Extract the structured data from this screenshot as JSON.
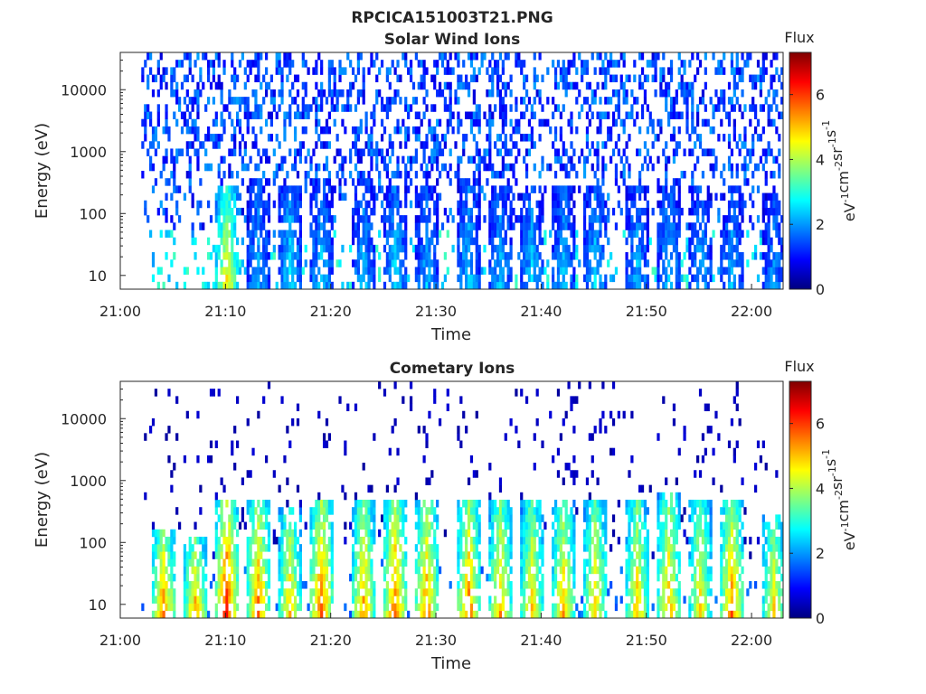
{
  "figure": {
    "title": "RPCICA151003T21.PNG"
  },
  "colorbar": {
    "label_top": "Flux",
    "unit_label_parts": [
      "eV",
      "-1",
      "cm",
      "-2",
      "sr",
      "-1",
      "s",
      "-1"
    ],
    "ticks": [
      0,
      2,
      4,
      6
    ],
    "range": [
      0,
      7.3
    ]
  },
  "chart_data": [
    {
      "type": "heatmap",
      "title": "Solar Wind Ions",
      "xlabel": "Time",
      "ylabel": "Energy (eV)",
      "yscale": "log",
      "ylim": [
        6,
        40000
      ],
      "xlim": [
        "21:00",
        "22:03"
      ],
      "xticks": [
        "21:00",
        "21:10",
        "21:20",
        "21:30",
        "21:40",
        "21:50",
        "22:00"
      ],
      "yticks": [
        10,
        100,
        1000,
        10000
      ],
      "data_start": "21:02",
      "data_end": "22:03",
      "value_range": [
        0,
        7.3
      ],
      "colormap": "jet",
      "bursts": [
        {
          "t": "21:10",
          "flux": 4.6,
          "emax": 300
        },
        {
          "t": "21:13",
          "flux": 2.2,
          "emax": 400
        },
        {
          "t": "21:16",
          "flux": 2.6,
          "emax": 300
        },
        {
          "t": "21:19",
          "flux": 2.4,
          "emax": 350
        },
        {
          "t": "21:23",
          "flux": 2.3,
          "emax": 350
        },
        {
          "t": "21:26",
          "flux": 2.5,
          "emax": 300
        },
        {
          "t": "21:29",
          "flux": 2.2,
          "emax": 300
        },
        {
          "t": "21:33",
          "flux": 2.4,
          "emax": 400
        },
        {
          "t": "21:36",
          "flux": 2.3,
          "emax": 300
        },
        {
          "t": "21:39",
          "flux": 2.4,
          "emax": 300
        },
        {
          "t": "21:42",
          "flux": 2.3,
          "emax": 300
        },
        {
          "t": "21:45",
          "flux": 2.4,
          "emax": 300
        },
        {
          "t": "21:49",
          "flux": 2.3,
          "emax": 300
        },
        {
          "t": "21:52",
          "flux": 2.3,
          "emax": 400
        },
        {
          "t": "21:55",
          "flux": 2.2,
          "emax": 300
        },
        {
          "t": "21:58",
          "flux": 2.2,
          "emax": 300
        },
        {
          "t": "22:02",
          "flux": 2.0,
          "emax": 200
        }
      ],
      "background_flux": 1.6
    },
    {
      "type": "heatmap",
      "title": "Cometary Ions",
      "xlabel": "Time",
      "ylabel": "Energy (eV)",
      "yscale": "log",
      "ylim": [
        6,
        40000
      ],
      "xlim": [
        "21:00",
        "22:03"
      ],
      "xticks": [
        "21:00",
        "21:10",
        "21:20",
        "21:30",
        "21:40",
        "21:50",
        "22:00"
      ],
      "yticks": [
        10,
        100,
        1000,
        10000
      ],
      "data_start": "21:02",
      "data_end": "22:03",
      "value_range": [
        0,
        7.3
      ],
      "colormap": "jet",
      "bursts": [
        {
          "t": "21:04",
          "flux": 5.6,
          "emax": 150
        },
        {
          "t": "21:07",
          "flux": 5.2,
          "emax": 120
        },
        {
          "t": "21:10",
          "flux": 6.2,
          "emax": 500
        },
        {
          "t": "21:13",
          "flux": 5.6,
          "emax": 500
        },
        {
          "t": "21:16",
          "flux": 5.0,
          "emax": 400
        },
        {
          "t": "21:19",
          "flux": 5.8,
          "emax": 500
        },
        {
          "t": "21:23",
          "flux": 5.3,
          "emax": 500
        },
        {
          "t": "21:26",
          "flux": 5.8,
          "emax": 500
        },
        {
          "t": "21:29",
          "flux": 5.5,
          "emax": 500
        },
        {
          "t": "21:33",
          "flux": 5.6,
          "emax": 500
        },
        {
          "t": "21:36",
          "flux": 5.2,
          "emax": 500
        },
        {
          "t": "21:39",
          "flux": 5.0,
          "emax": 500
        },
        {
          "t": "21:42",
          "flux": 5.1,
          "emax": 500
        },
        {
          "t": "21:45",
          "flux": 5.0,
          "emax": 500
        },
        {
          "t": "21:49",
          "flux": 5.0,
          "emax": 500
        },
        {
          "t": "21:52",
          "flux": 5.2,
          "emax": 600
        },
        {
          "t": "21:55",
          "flux": 4.8,
          "emax": 500
        },
        {
          "t": "21:58",
          "flux": 5.6,
          "emax": 500
        },
        {
          "t": "22:02",
          "flux": 4.8,
          "emax": 300
        }
      ],
      "background_flux": 0.5
    }
  ]
}
